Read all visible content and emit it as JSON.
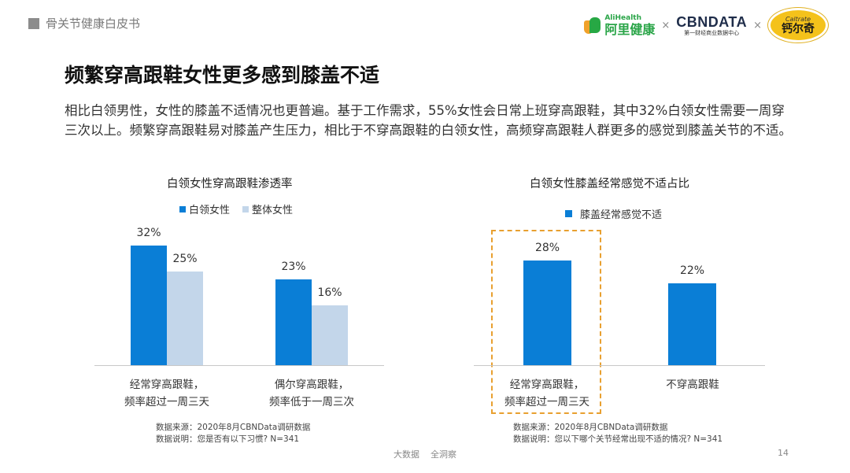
{
  "header": {
    "section_label": "骨关节健康白皮书"
  },
  "logos": {
    "alihealth_en": "AliHealth",
    "alihealth_cn": "阿里健康",
    "separator": "×",
    "cbndata": "CBNDATA",
    "cbndata_sub": "第一财经商业数据中心",
    "caltrate_en": "Caltrate",
    "caltrate_cn": "钙尔奇"
  },
  "title": "频繁穿高跟鞋女性更多感到膝盖不适",
  "paragraph": "相比白领男性，女性的膝盖不适情况也更普遍。基于工作需求，55%女性会日常上班穿高跟鞋，其中32%白领女性需要一周穿三次以上。频繁穿高跟鞋易对膝盖产生压力，相比于不穿高跟鞋的白领女性，高频穿高跟鞋人群更多的感觉到膝盖关节的不适。",
  "colors": {
    "dark_blue": "#0a7ed6",
    "light_blue": "#c3d6ea",
    "highlight": "#e8a030"
  },
  "chart_data": [
    {
      "type": "bar",
      "title": "白领女性穿高跟鞋渗透率",
      "categories": [
        "经常穿高跟鞋，\n频率超过一周三天",
        "偶尔穿高跟鞋，\n频率低于一周三次"
      ],
      "series": [
        {
          "name": "白领女性",
          "values": [
            32,
            23
          ],
          "labels": [
            "32%",
            "23%"
          ],
          "color": "#0a7ed6"
        },
        {
          "name": "整体女性",
          "values": [
            25,
            16
          ],
          "labels": [
            "25%",
            "16%"
          ],
          "color": "#c3d6ea"
        }
      ],
      "ylim": [
        0,
        35
      ],
      "legend_position": "top",
      "grid": false,
      "notes": [
        "数据来源：2020年8月CBNData调研数据",
        "数据说明：您是否有以下习惯? N=341"
      ]
    },
    {
      "type": "bar",
      "title": "白领女性膝盖经常感觉不适占比",
      "categories": [
        "经常穿高跟鞋，\n频率超过一周三天",
        "不穿高跟鞋"
      ],
      "series": [
        {
          "name": "膝盖经常感觉不适",
          "values": [
            28,
            22
          ],
          "labels": [
            "28%",
            "22%"
          ],
          "color": "#0a7ed6"
        }
      ],
      "ylim": [
        0,
        35
      ],
      "legend_position": "top",
      "grid": false,
      "highlight_category": 0,
      "notes": [
        "数据来源：2020年8月CBNData调研数据",
        "数据说明：您以下哪个关节经常出现不适的情况? N=341"
      ]
    }
  ],
  "footer": {
    "center": "大数据    全洞察",
    "page": "14"
  }
}
